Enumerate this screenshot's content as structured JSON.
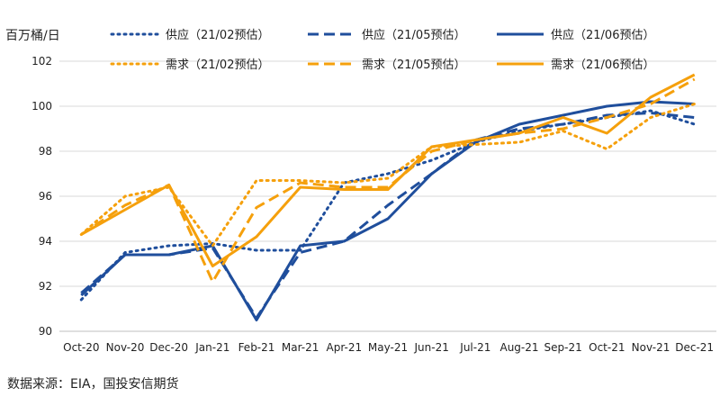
{
  "chart_data": {
    "type": "line",
    "title": "",
    "ylabel": "百万桶/日",
    "xlabel": "",
    "ylim": [
      90,
      102
    ],
    "yticks": [
      90,
      92,
      94,
      96,
      98,
      100,
      102
    ],
    "categories": [
      "Oct-20",
      "Nov-20",
      "Dec-20",
      "Jan-21",
      "Feb-21",
      "Mar-21",
      "Apr-21",
      "May-21",
      "Jun-21",
      "Jul-21",
      "Aug-21",
      "Sep-21",
      "Oct-21",
      "Nov-21",
      "Dec-21"
    ],
    "series": [
      {
        "name": "供应（21/02预估）",
        "color": "#1f4e9c",
        "dash": "dot",
        "values": [
          91.4,
          93.5,
          93.8,
          93.9,
          93.6,
          93.6,
          96.6,
          97.0,
          97.6,
          98.4,
          98.9,
          99.2,
          99.5,
          99.8,
          99.2
        ]
      },
      {
        "name": "供应（21/05预估）",
        "color": "#1f4e9c",
        "dash": "dash",
        "values": [
          91.7,
          93.4,
          93.4,
          93.7,
          90.6,
          93.5,
          94.0,
          95.6,
          97.0,
          98.5,
          99.0,
          99.2,
          99.6,
          99.7,
          99.5
        ]
      },
      {
        "name": "供应（21/06预估）",
        "color": "#1f4e9c",
        "dash": "solid",
        "values": [
          91.6,
          93.4,
          93.4,
          93.8,
          90.5,
          93.8,
          94.0,
          95.0,
          97.0,
          98.4,
          99.2,
          99.6,
          100.0,
          100.2,
          100.1
        ]
      },
      {
        "name": "需求（21/02预估）",
        "color": "#f5a00c",
        "dash": "dot",
        "values": [
          94.3,
          96.0,
          96.4,
          93.8,
          96.7,
          96.7,
          96.6,
          96.8,
          98.2,
          98.3,
          98.4,
          98.9,
          98.1,
          99.5,
          100.1
        ]
      },
      {
        "name": "需求（21/05预估）",
        "color": "#f5a00c",
        "dash": "dash",
        "values": [
          94.3,
          95.6,
          96.5,
          92.2,
          95.5,
          96.6,
          96.4,
          96.4,
          98.0,
          98.5,
          98.8,
          99.0,
          99.5,
          100.1,
          101.2
        ]
      },
      {
        "name": "需求（21/06预估）",
        "color": "#f5a00c",
        "dash": "solid",
        "values": [
          94.3,
          95.4,
          96.5,
          92.9,
          94.2,
          96.4,
          96.3,
          96.3,
          98.2,
          98.5,
          98.8,
          99.5,
          98.8,
          100.4,
          101.4
        ]
      }
    ]
  },
  "source_text": "数据来源：EIA，国投安信期货"
}
